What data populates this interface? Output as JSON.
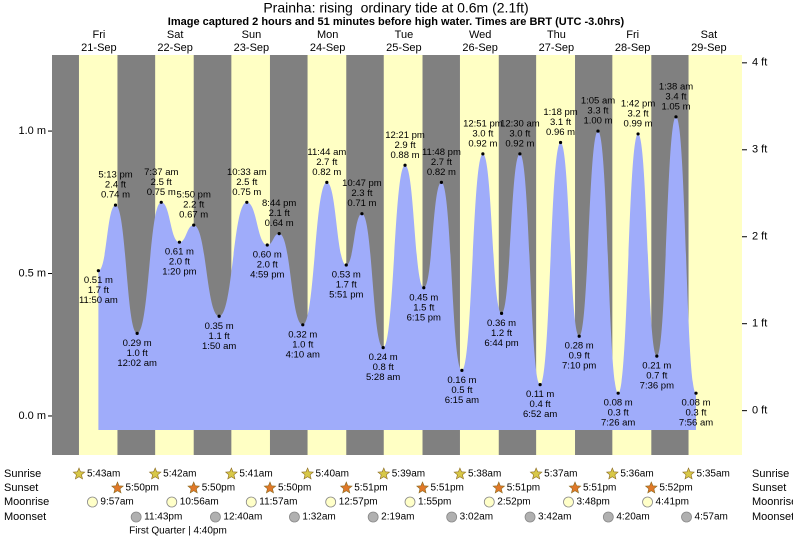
{
  "chart_data": {
    "type": "tide",
    "title": "Prainha: rising  ordinary tide at 0.6m (2.1ft)",
    "subtitle": "Image captured 2 hours and 51 minutes before high water. Times are BRT (UTC -3.0hrs)",
    "ylim": [
      -0.137,
      1.267
    ],
    "yticks": [
      {
        "value": 0,
        "label": "0.0 m"
      },
      {
        "value": 0.5,
        "label": "0.5 m"
      },
      {
        "value": 1,
        "label": "1.0 m"
      }
    ],
    "y2lim": [
      -0.51,
      4.09
    ],
    "y2ticks": [
      {
        "value": 0,
        "label": "0 ft"
      },
      {
        "value": 1,
        "label": "1 ft"
      },
      {
        "value": 2,
        "label": "2 ft"
      },
      {
        "value": 3,
        "label": "3 ft"
      },
      {
        "value": 4,
        "label": "4 ft"
      }
    ],
    "colors": {
      "night": "#808080",
      "day": "#ffffc4",
      "water": "#9facfa",
      "heading": "#d40000"
    },
    "almanac_labels": {
      "sunrise": "Sunrise",
      "sunset": "Sunset",
      "moonrise": "Moonrise",
      "moonset": "Moonset"
    },
    "days": [
      {
        "weekday": "Fri",
        "date": "21-Sep",
        "sunrise": "5:43am",
        "sunset": "5:50pm",
        "moonrise": "9:57am",
        "moonset": "11:43pm",
        "tides": [
          {
            "time": "11:50 am",
            "m": 0.51,
            "m_label": "0.51 m",
            "ft": 1.7,
            "ft_label": "1.7 ft"
          },
          {
            "time": "5:13 pm",
            "m": 0.74,
            "m_label": "0.74 m",
            "ft": 2.4,
            "ft_label": "2.4 ft"
          }
        ]
      },
      {
        "weekday": "Sat",
        "date": "22-Sep",
        "sunrise": "5:42am",
        "sunset": "5:50pm",
        "moonrise": "10:56am",
        "phase": "First Quarter | 4:40pm",
        "tides": [
          {
            "time": "12:02 am",
            "m": 0.29,
            "m_label": "0.29 m",
            "ft": 1.0,
            "ft_label": "1.0 ft"
          },
          {
            "time": "7:37 am",
            "m": 0.75,
            "m_label": "0.75 m",
            "ft": 2.5,
            "ft_label": "2.5 ft"
          },
          {
            "time": "1:20 pm",
            "m": 0.61,
            "m_label": "0.61 m",
            "ft": 2.0,
            "ft_label": "2.0 ft"
          },
          {
            "time": "5:50 pm",
            "m": 0.67,
            "m_label": "0.67 m",
            "ft": 2.2,
            "ft_label": "2.2 ft"
          }
        ]
      },
      {
        "weekday": "Sun",
        "date": "23-Sep",
        "sunrise": "5:41am",
        "sunset": "5:50pm",
        "moonrise": "11:57am",
        "moonset": "12:40am",
        "tides": [
          {
            "time": "1:50 am",
            "m": 0.35,
            "m_label": "0.35 m",
            "ft": 1.1,
            "ft_label": "1.1 ft"
          },
          {
            "time": "10:33 am",
            "m": 0.75,
            "m_label": "0.75 m",
            "ft": 2.5,
            "ft_label": "2.5 ft"
          },
          {
            "time": "4:59 pm",
            "m": 0.6,
            "m_label": "0.60 m",
            "ft": 2.0,
            "ft_label": "2.0 ft"
          },
          {
            "time": "8:44 pm",
            "m": 0.64,
            "m_label": "0.64 m",
            "ft": 2.1,
            "ft_label": "2.1 ft"
          }
        ]
      },
      {
        "weekday": "Mon",
        "date": "24-Sep",
        "sunrise": "5:40am",
        "sunset": "5:51pm",
        "moonrise": "12:57pm",
        "moonset": "1:32am",
        "tides": [
          {
            "time": "4:10 am",
            "m": 0.32,
            "m_label": "0.32 m",
            "ft": 1.0,
            "ft_label": "1.0 ft"
          },
          {
            "time": "11:44 am",
            "m": 0.82,
            "m_label": "0.82 m",
            "ft": 2.7,
            "ft_label": "2.7 ft"
          },
          {
            "time": "5:51 pm",
            "m": 0.53,
            "m_label": "0.53 m",
            "ft": 1.7,
            "ft_label": "1.7 ft"
          },
          {
            "time": "10:47 pm",
            "m": 0.71,
            "m_label": "0.71 m",
            "ft": 2.3,
            "ft_label": "2.3 ft"
          }
        ]
      },
      {
        "weekday": "Tue",
        "date": "25-Sep",
        "sunrise": "5:39am",
        "sunset": "5:51pm",
        "moonrise": "1:55pm",
        "moonset": "2:19am",
        "tides": [
          {
            "time": "5:28 am",
            "m": 0.24,
            "m_label": "0.24 m",
            "ft": 0.8,
            "ft_label": "0.8 ft"
          },
          {
            "time": "12:21 pm",
            "m": 0.88,
            "m_label": "0.88 m",
            "ft": 2.9,
            "ft_label": "2.9 ft"
          },
          {
            "time": "6:15 pm",
            "m": 0.45,
            "m_label": "0.45 m",
            "ft": 1.5,
            "ft_label": "1.5 ft"
          },
          {
            "time": "11:48 pm",
            "m": 0.82,
            "m_label": "0.82 m",
            "ft": 2.7,
            "ft_label": "2.7 ft"
          }
        ]
      },
      {
        "weekday": "Wed",
        "date": "26-Sep",
        "sunrise": "5:38am",
        "sunset": "5:51pm",
        "moonrise": "2:52pm",
        "moonset": "3:02am",
        "tides": [
          {
            "time": "6:15 am",
            "m": 0.16,
            "m_label": "0.16 m",
            "ft": 0.5,
            "ft_label": "0.5 ft"
          },
          {
            "time": "12:51 pm",
            "m": 0.92,
            "m_label": "0.92 m",
            "ft": 3.0,
            "ft_label": "3.0 ft"
          },
          {
            "time": "6:44 pm",
            "m": 0.36,
            "m_label": "0.36 m",
            "ft": 1.2,
            "ft_label": "1.2 ft"
          }
        ]
      },
      {
        "weekday": "Thu",
        "date": "27-Sep",
        "sunrise": "5:37am",
        "sunset": "5:51pm",
        "moonrise": "3:48pm",
        "moonset": "3:42am",
        "tides": [
          {
            "time": "12:30 am",
            "m": 0.92,
            "m_label": "0.92 m",
            "ft": 3.0,
            "ft_label": "3.0 ft"
          },
          {
            "time": "6:52 am",
            "m": 0.11,
            "m_label": "0.11 m",
            "ft": 0.4,
            "ft_label": "0.4 ft"
          },
          {
            "time": "1:18 pm",
            "m": 0.96,
            "m_label": "0.96 m",
            "ft": 3.1,
            "ft_label": "3.1 ft"
          },
          {
            "time": "7:10 pm",
            "m": 0.28,
            "m_label": "0.28 m",
            "ft": 0.9,
            "ft_label": "0.9 ft"
          }
        ]
      },
      {
        "weekday": "Fri",
        "date": "28-Sep",
        "sunrise": "5:36am",
        "sunset": "5:52pm",
        "moonrise": "4:41pm",
        "moonset": "4:20am",
        "tides": [
          {
            "time": "1:05 am",
            "m": 1.0,
            "m_label": "1.00 m",
            "ft": 3.3,
            "ft_label": "3.3 ft"
          },
          {
            "time": "7:26 am",
            "m": 0.08,
            "m_label": "0.08 m",
            "ft": 0.3,
            "ft_label": "0.3 ft"
          },
          {
            "time": "1:42 pm",
            "m": 0.99,
            "m_label": "0.99 m",
            "ft": 3.2,
            "ft_label": "3.2 ft"
          },
          {
            "time": "7:36 pm",
            "m": 0.21,
            "m_label": "0.21 m",
            "ft": 0.7,
            "ft_label": "0.7 ft"
          }
        ]
      },
      {
        "weekday": "Sat",
        "date": "29-Sep",
        "sunrise": "5:35am",
        "moonset": "4:57am",
        "tides": [
          {
            "time": "1:38 am",
            "m": 1.05,
            "m_label": "1.05 m",
            "ft": 3.4,
            "ft_label": "3.4 ft"
          },
          {
            "time": "7:56 am",
            "m": 0.08,
            "m_label": "0.08 m",
            "ft": 0.3,
            "ft_label": "0.3 ft"
          }
        ]
      }
    ]
  }
}
